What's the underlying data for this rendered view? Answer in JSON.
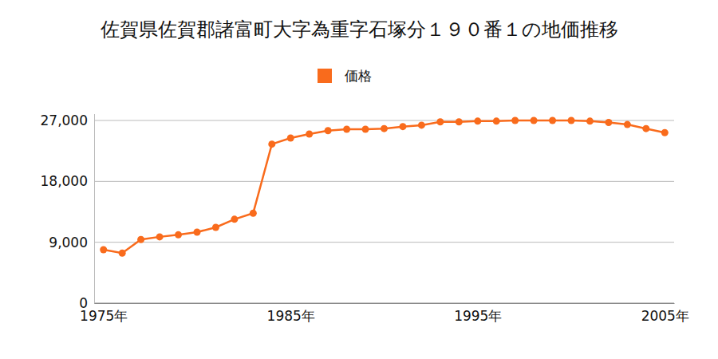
{
  "chart_data": {
    "type": "line",
    "title": "佐賀県佐賀郡諸富町大字為重字石塚分１９０番１の地価推移",
    "x": [
      1975,
      1976,
      1977,
      1978,
      1979,
      1980,
      1981,
      1982,
      1983,
      1984,
      1985,
      1986,
      1987,
      1988,
      1989,
      1990,
      1991,
      1992,
      1993,
      1994,
      1995,
      1996,
      1997,
      1998,
      1999,
      2000,
      2001,
      2002,
      2003,
      2004,
      2005
    ],
    "series": [
      {
        "name": "価格",
        "color": "#f96b1c",
        "marker": "circle",
        "line_style": "solid",
        "values": [
          7900,
          7400,
          9400,
          9800,
          10100,
          10500,
          11200,
          12400,
          13300,
          23500,
          24400,
          25000,
          25500,
          25700,
          25700,
          25800,
          26100,
          26300,
          26800,
          26800,
          26900,
          26900,
          27000,
          27000,
          27000,
          27000,
          26900,
          26700,
          26400,
          25800,
          25200
        ]
      }
    ],
    "xlim": [
      1974.5,
      2005.5
    ],
    "xticks": [
      {
        "value": 1975,
        "label": "1975年"
      },
      {
        "value": 1985,
        "label": "1985年"
      },
      {
        "value": 1995,
        "label": "1995年"
      },
      {
        "value": 2005,
        "label": "2005年"
      }
    ],
    "ylim": [
      0,
      28000
    ],
    "yticks": [
      0,
      {
        "value": 9000,
        "label": "9,000"
      },
      {
        "value": 18000,
        "label": "18,000"
      },
      {
        "value": 27000,
        "label": "27,000"
      }
    ],
    "grid": true,
    "legend": "top"
  }
}
